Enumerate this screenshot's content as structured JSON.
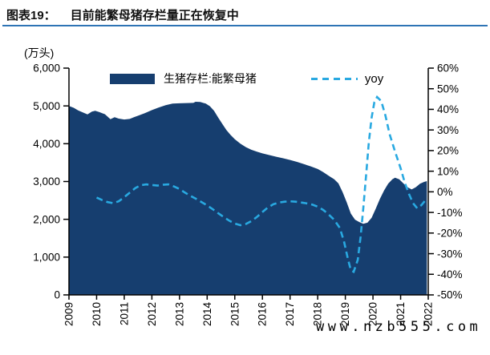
{
  "header": {
    "label": "图表19：",
    "title": "目前能繁母猪存栏量正在恢复中"
  },
  "unit_label": "(万头)",
  "legend": {
    "area_label": "生猪存栏:能繁母猪",
    "line_label": "yoy"
  },
  "watermark": "www.nzb555.com",
  "colors": {
    "area": "#163E6F",
    "yoy_line": "#29A9E1",
    "title_rule": "#2E74B5",
    "axis": "#000000",
    "text": "#000000"
  },
  "chart_data": {
    "type": "area",
    "title": "目前能繁母猪存栏量正在恢复中",
    "grid": false,
    "legend_position": "top",
    "x_axis": {
      "labels": [
        "2009",
        "2010",
        "2011",
        "2012",
        "2013",
        "2014",
        "2015",
        "2016",
        "2017",
        "2018",
        "2019",
        "2020",
        "2021",
        "2022"
      ],
      "range": [
        2009,
        2022
      ],
      "tick_label_rotation": -90
    },
    "y_left": {
      "label": "(万头)",
      "min": 0,
      "max": 6000,
      "step": 1000,
      "tick_labels": [
        "0",
        "1,000",
        "2,000",
        "3,000",
        "4,000",
        "5,000",
        "6,000"
      ]
    },
    "y_right": {
      "label": "yoy %",
      "min": -50,
      "max": 60,
      "step": 10,
      "tick_labels": [
        "-50%",
        "-40%",
        "-30%",
        "-20%",
        "-10%",
        "0%",
        "10%",
        "20%",
        "30%",
        "40%",
        "50%",
        "60%"
      ]
    },
    "series": [
      {
        "name": "生猪存栏:能繁母猪",
        "type": "area",
        "axis": "left",
        "points": [
          [
            2009.0,
            5000
          ],
          [
            2009.17,
            4950
          ],
          [
            2009.33,
            4880
          ],
          [
            2009.5,
            4830
          ],
          [
            2009.67,
            4775
          ],
          [
            2009.83,
            4850
          ],
          [
            2009.95,
            4870
          ],
          [
            2010.1,
            4835
          ],
          [
            2010.3,
            4780
          ],
          [
            2010.5,
            4650
          ],
          [
            2010.65,
            4700
          ],
          [
            2010.8,
            4665
          ],
          [
            2011.0,
            4640
          ],
          [
            2011.2,
            4655
          ],
          [
            2011.35,
            4700
          ],
          [
            2011.5,
            4740
          ],
          [
            2011.75,
            4810
          ],
          [
            2012.0,
            4890
          ],
          [
            2012.25,
            4960
          ],
          [
            2012.5,
            5020
          ],
          [
            2012.75,
            5060
          ],
          [
            2013.0,
            5070
          ],
          [
            2013.25,
            5075
          ],
          [
            2013.5,
            5080
          ],
          [
            2013.58,
            5110
          ],
          [
            2013.75,
            5105
          ],
          [
            2013.95,
            5060
          ],
          [
            2014.1,
            4990
          ],
          [
            2014.25,
            4870
          ],
          [
            2014.4,
            4690
          ],
          [
            2014.55,
            4520
          ],
          [
            2014.7,
            4360
          ],
          [
            2014.85,
            4230
          ],
          [
            2015.0,
            4120
          ],
          [
            2015.2,
            4000
          ],
          [
            2015.4,
            3910
          ],
          [
            2015.6,
            3840
          ],
          [
            2015.8,
            3790
          ],
          [
            2016.0,
            3745
          ],
          [
            2016.25,
            3700
          ],
          [
            2016.5,
            3655
          ],
          [
            2016.75,
            3615
          ],
          [
            2017.0,
            3570
          ],
          [
            2017.25,
            3520
          ],
          [
            2017.5,
            3460
          ],
          [
            2017.75,
            3400
          ],
          [
            2018.0,
            3330
          ],
          [
            2018.2,
            3250
          ],
          [
            2018.4,
            3150
          ],
          [
            2018.6,
            3060
          ],
          [
            2018.75,
            2950
          ],
          [
            2018.9,
            2720
          ],
          [
            2019.05,
            2450
          ],
          [
            2019.2,
            2150
          ],
          [
            2019.35,
            1990
          ],
          [
            2019.5,
            1930
          ],
          [
            2019.65,
            1880
          ],
          [
            2019.8,
            1910
          ],
          [
            2019.95,
            2040
          ],
          [
            2020.1,
            2280
          ],
          [
            2020.25,
            2540
          ],
          [
            2020.4,
            2760
          ],
          [
            2020.55,
            2940
          ],
          [
            2020.7,
            3060
          ],
          [
            2020.8,
            3100
          ],
          [
            2020.95,
            3060
          ],
          [
            2021.1,
            2950
          ],
          [
            2021.25,
            2850
          ],
          [
            2021.4,
            2790
          ],
          [
            2021.55,
            2850
          ],
          [
            2021.7,
            2940
          ],
          [
            2021.85,
            2990
          ],
          [
            2021.95,
            3010
          ]
        ]
      },
      {
        "name": "yoy",
        "type": "line_dashed",
        "axis": "right",
        "points": [
          [
            2010.0,
            -2.8
          ],
          [
            2010.2,
            -4.0
          ],
          [
            2010.4,
            -5.0
          ],
          [
            2010.6,
            -5.5
          ],
          [
            2010.8,
            -4.6
          ],
          [
            2011.0,
            -2.6
          ],
          [
            2011.2,
            -0.4
          ],
          [
            2011.4,
            1.8
          ],
          [
            2011.6,
            3.2
          ],
          [
            2011.8,
            3.6
          ],
          [
            2012.0,
            3.3
          ],
          [
            2012.2,
            3.0
          ],
          [
            2012.4,
            3.4
          ],
          [
            2012.6,
            3.6
          ],
          [
            2012.8,
            2.6
          ],
          [
            2013.0,
            1.4
          ],
          [
            2013.2,
            -0.4
          ],
          [
            2013.4,
            -2.0
          ],
          [
            2013.6,
            -3.4
          ],
          [
            2013.8,
            -5.0
          ],
          [
            2014.0,
            -6.6
          ],
          [
            2014.2,
            -8.4
          ],
          [
            2014.4,
            -10.4
          ],
          [
            2014.6,
            -12.2
          ],
          [
            2014.8,
            -14.0
          ],
          [
            2015.0,
            -15.4
          ],
          [
            2015.2,
            -16.2
          ],
          [
            2015.4,
            -15.6
          ],
          [
            2015.6,
            -14.2
          ],
          [
            2015.8,
            -12.2
          ],
          [
            2016.0,
            -9.8
          ],
          [
            2016.2,
            -7.6
          ],
          [
            2016.4,
            -6.0
          ],
          [
            2016.6,
            -5.2
          ],
          [
            2016.8,
            -4.8
          ],
          [
            2017.0,
            -4.6
          ],
          [
            2017.2,
            -4.8
          ],
          [
            2017.4,
            -5.2
          ],
          [
            2017.6,
            -5.6
          ],
          [
            2017.8,
            -6.2
          ],
          [
            2018.0,
            -7.2
          ],
          [
            2018.2,
            -8.8
          ],
          [
            2018.4,
            -11.0
          ],
          [
            2018.6,
            -13.6
          ],
          [
            2018.8,
            -17.5
          ],
          [
            2018.95,
            -24.0
          ],
          [
            2019.1,
            -33.0
          ],
          [
            2019.2,
            -38.0
          ],
          [
            2019.3,
            -38.8
          ],
          [
            2019.45,
            -33.0
          ],
          [
            2019.55,
            -22.0
          ],
          [
            2019.65,
            -8.0
          ],
          [
            2019.75,
            8.0
          ],
          [
            2019.85,
            24.0
          ],
          [
            2019.95,
            36.0
          ],
          [
            2020.05,
            43.5
          ],
          [
            2020.15,
            46.0
          ],
          [
            2020.3,
            44.0
          ],
          [
            2020.45,
            37.0
          ],
          [
            2020.6,
            28.0
          ],
          [
            2020.8,
            19.5
          ],
          [
            2021.0,
            11.5
          ],
          [
            2021.15,
            4.5
          ],
          [
            2021.3,
            -1.0
          ],
          [
            2021.45,
            -5.5
          ],
          [
            2021.6,
            -8.0
          ],
          [
            2021.75,
            -6.5
          ],
          [
            2021.9,
            -4.0
          ]
        ]
      }
    ]
  }
}
